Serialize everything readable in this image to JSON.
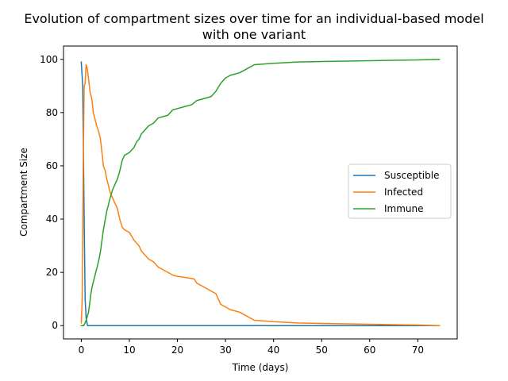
{
  "chart_data": {
    "type": "line",
    "title_lines": [
      "Evolution of compartment sizes over time for an individual-based model",
      "with one variant"
    ],
    "xlabel": "Time (days)",
    "ylabel": "Compartment Size",
    "xlim": [
      -3.7,
      78.2
    ],
    "ylim": [
      -5,
      105
    ],
    "xticks": [
      0,
      10,
      20,
      30,
      40,
      50,
      60,
      70
    ],
    "yticks": [
      0,
      20,
      40,
      60,
      80,
      100
    ],
    "grid": false,
    "legend_position": "center-right",
    "series": [
      {
        "name": "Susceptible",
        "color": "#1f77b4",
        "x": [
          0,
          0.3,
          0.6,
          0.8,
          1.0,
          1.3,
          2,
          5,
          10,
          20,
          30,
          40,
          50,
          60,
          70,
          74.5
        ],
        "y": [
          99,
          90,
          40,
          10,
          3,
          0,
          0,
          0,
          0,
          0,
          0,
          0,
          0,
          0,
          0,
          0
        ]
      },
      {
        "name": "Infected",
        "color": "#ff7f0e",
        "x": [
          0,
          0.2,
          0.4,
          0.6,
          0.8,
          1.0,
          1.2,
          1.5,
          1.8,
          2.2,
          2.5,
          2.8,
          3.2,
          3.6,
          4.0,
          4.3,
          4.6,
          5.0,
          5.3,
          5.6,
          6.0,
          6.5,
          7.0,
          7.5,
          8.0,
          8.5,
          9.0,
          9.5,
          10.0,
          11.0,
          12.0,
          12.5,
          13.0,
          14.0,
          15.0,
          16.0,
          16.5,
          17.0,
          18.0,
          19.0,
          20.0,
          22.0,
          23.5,
          24.0,
          25.0,
          26.0,
          27.0,
          28.0,
          28.5,
          29.0,
          30.0,
          31.0,
          32.0,
          33.0,
          34.0,
          35.0,
          36.0,
          40.0,
          45.0,
          50.0,
          60.0,
          70.0,
          74.5
        ],
        "y": [
          1,
          10,
          60,
          90,
          91,
          98,
          97,
          93,
          88,
          85,
          80,
          78,
          75,
          73,
          70,
          65,
          60,
          58,
          55,
          53,
          50,
          48,
          46,
          44,
          40,
          37,
          36,
          35.5,
          35,
          32,
          30,
          28,
          27,
          25,
          24,
          22,
          21.5,
          21,
          20,
          19,
          18.5,
          18,
          17.5,
          16,
          15,
          14,
          13,
          12,
          10,
          8,
          7,
          6,
          5.5,
          5,
          4,
          3,
          2,
          1.5,
          1,
          0.8,
          0.5,
          0.2,
          0
        ]
      },
      {
        "name": "Immune",
        "color": "#2ca02c",
        "x": [
          0,
          0.5,
          0.8,
          1.0,
          1.5,
          1.8,
          2.0,
          2.3,
          2.6,
          3.0,
          3.3,
          3.7,
          4.0,
          4.3,
          4.6,
          5.0,
          5.3,
          5.6,
          6.0,
          6.5,
          7.0,
          7.5,
          8.0,
          8.5,
          9.0,
          9.5,
          10.0,
          11.0,
          11.5,
          12.0,
          12.5,
          13.0,
          13.5,
          14.0,
          15.0,
          16.0,
          17.0,
          18.0,
          18.5,
          19.0,
          20.0,
          21.0,
          22.0,
          23.0,
          24.0,
          25.0,
          26.0,
          27.0,
          28.0,
          29.0,
          30.0,
          31.0,
          32.0,
          33.0,
          34.0,
          35.0,
          36.0,
          40.0,
          45.0,
          50.0,
          60.0,
          70.0,
          74.5
        ],
        "y": [
          0,
          0,
          1,
          2,
          5,
          9,
          12,
          15,
          17,
          20,
          22,
          25,
          28,
          32,
          36,
          40,
          43,
          45,
          48,
          51,
          53,
          55,
          58,
          62,
          64,
          64.5,
          65,
          67,
          69,
          70,
          72,
          73,
          74,
          75,
          76,
          78,
          78.5,
          79,
          80,
          81,
          81.5,
          82,
          82.5,
          83,
          84.5,
          85,
          85.5,
          86,
          88,
          91,
          93,
          94,
          94.5,
          95,
          96,
          97,
          98,
          98.5,
          99,
          99.2,
          99.5,
          99.8,
          100
        ]
      }
    ]
  }
}
